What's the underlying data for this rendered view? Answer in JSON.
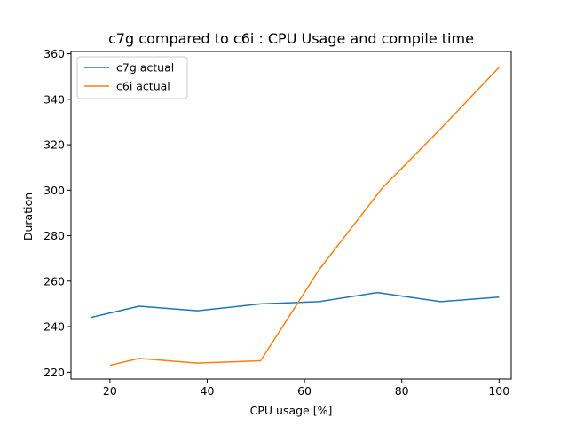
{
  "chart_data": {
    "type": "line",
    "title": "c7g compared to c6i : CPU Usage and compile time",
    "xlabel": "CPU usage [%]",
    "ylabel": "Duration",
    "xlim": [
      12,
      102.5
    ],
    "ylim": [
      217,
      361
    ],
    "xticks": [
      20,
      40,
      60,
      80,
      100
    ],
    "yticks": [
      220,
      240,
      260,
      280,
      300,
      320,
      340,
      360
    ],
    "grid": false,
    "legend_position": "upper-left",
    "series": [
      {
        "name": "c7g actual",
        "color": "#1f77b4",
        "x": [
          16,
          26,
          38,
          51,
          63,
          75,
          88,
          100
        ],
        "y": [
          244,
          249,
          247,
          250,
          251,
          255,
          251,
          253
        ]
      },
      {
        "name": "c6i actual",
        "color": "#ff7f0e",
        "x": [
          20,
          26,
          38,
          51,
          63,
          76,
          88,
          100
        ],
        "y": [
          223,
          226,
          224,
          225,
          265,
          301,
          327,
          354
        ]
      }
    ]
  }
}
